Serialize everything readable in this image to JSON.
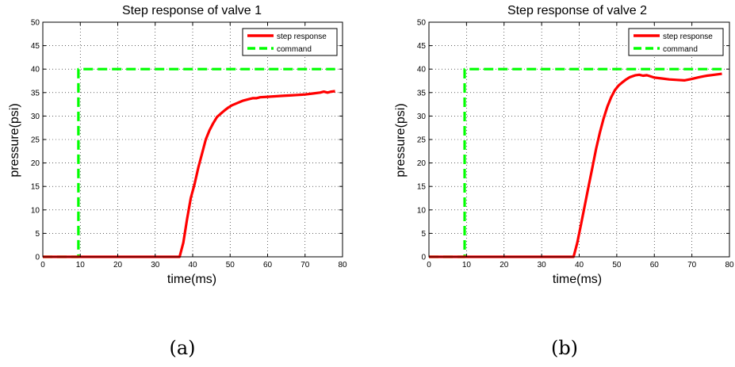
{
  "colors": {
    "response": "#ff0000",
    "command": "#00ff00",
    "grid": "#000000",
    "axes": "#000000"
  },
  "captions": [
    "(a)",
    "(b)"
  ],
  "chart_data": [
    {
      "type": "line",
      "title": "Step response of valve 1",
      "xlabel": "time(ms)",
      "ylabel": "pressure(psi)",
      "xlim": [
        0,
        80
      ],
      "ylim": [
        0,
        50
      ],
      "xticks": [
        0,
        10,
        20,
        30,
        40,
        50,
        60,
        70,
        80
      ],
      "yticks": [
        0,
        5,
        10,
        15,
        20,
        25,
        30,
        35,
        40,
        45,
        50
      ],
      "grid": true,
      "legend_position": "top-right",
      "series": [
        {
          "name": "step response",
          "x": [
            0,
            36.5,
            37.5,
            38.5,
            39.5,
            40.5,
            41.5,
            42.5,
            43.5,
            44.5,
            45.5,
            46.5,
            47.5,
            48.5,
            49.5,
            50.5,
            52,
            53.5,
            55,
            56,
            57,
            58,
            60,
            62,
            64,
            66,
            68,
            70,
            72,
            74,
            75,
            76,
            77,
            78
          ],
          "y": [
            0,
            0,
            3,
            8,
            12.5,
            15.5,
            19,
            22,
            25,
            27,
            28.5,
            29.8,
            30.5,
            31.2,
            31.8,
            32.3,
            32.8,
            33.3,
            33.6,
            33.8,
            33.8,
            34,
            34.1,
            34.2,
            34.3,
            34.4,
            34.5,
            34.6,
            34.8,
            35,
            35.2,
            35,
            35.2,
            35.3
          ]
        },
        {
          "name": "command",
          "x": [
            0,
            9.5,
            9.5,
            78
          ],
          "y": [
            0,
            0,
            40,
            40
          ]
        }
      ]
    },
    {
      "type": "line",
      "title": "Step response of valve 2",
      "xlabel": "time(ms)",
      "ylabel": "pressure(psi)",
      "xlim": [
        0,
        80
      ],
      "ylim": [
        0,
        50
      ],
      "xticks": [
        0,
        10,
        20,
        30,
        40,
        50,
        60,
        70,
        80
      ],
      "yticks": [
        0,
        5,
        10,
        15,
        20,
        25,
        30,
        35,
        40,
        45,
        50
      ],
      "grid": true,
      "legend_position": "top-right",
      "series": [
        {
          "name": "step response",
          "x": [
            0,
            38.5,
            39.5,
            40.5,
            41.5,
            42.5,
            43.5,
            44.5,
            45.5,
            46.5,
            47.5,
            48.5,
            49.5,
            50.5,
            51.5,
            52.5,
            53.5,
            55,
            56,
            57,
            58,
            60,
            62,
            64,
            66,
            68,
            70,
            72,
            74,
            76,
            78
          ],
          "y": [
            0,
            0,
            3,
            7,
            11,
            15,
            19,
            23,
            26.5,
            29.5,
            32,
            34,
            35.5,
            36.5,
            37.2,
            37.8,
            38.3,
            38.7,
            38.8,
            38.6,
            38.7,
            38.2,
            38,
            37.8,
            37.7,
            37.6,
            37.9,
            38.3,
            38.6,
            38.8,
            39
          ]
        },
        {
          "name": "command",
          "x": [
            0,
            9.5,
            9.5,
            78
          ],
          "y": [
            0,
            0,
            40,
            40
          ]
        }
      ]
    }
  ]
}
